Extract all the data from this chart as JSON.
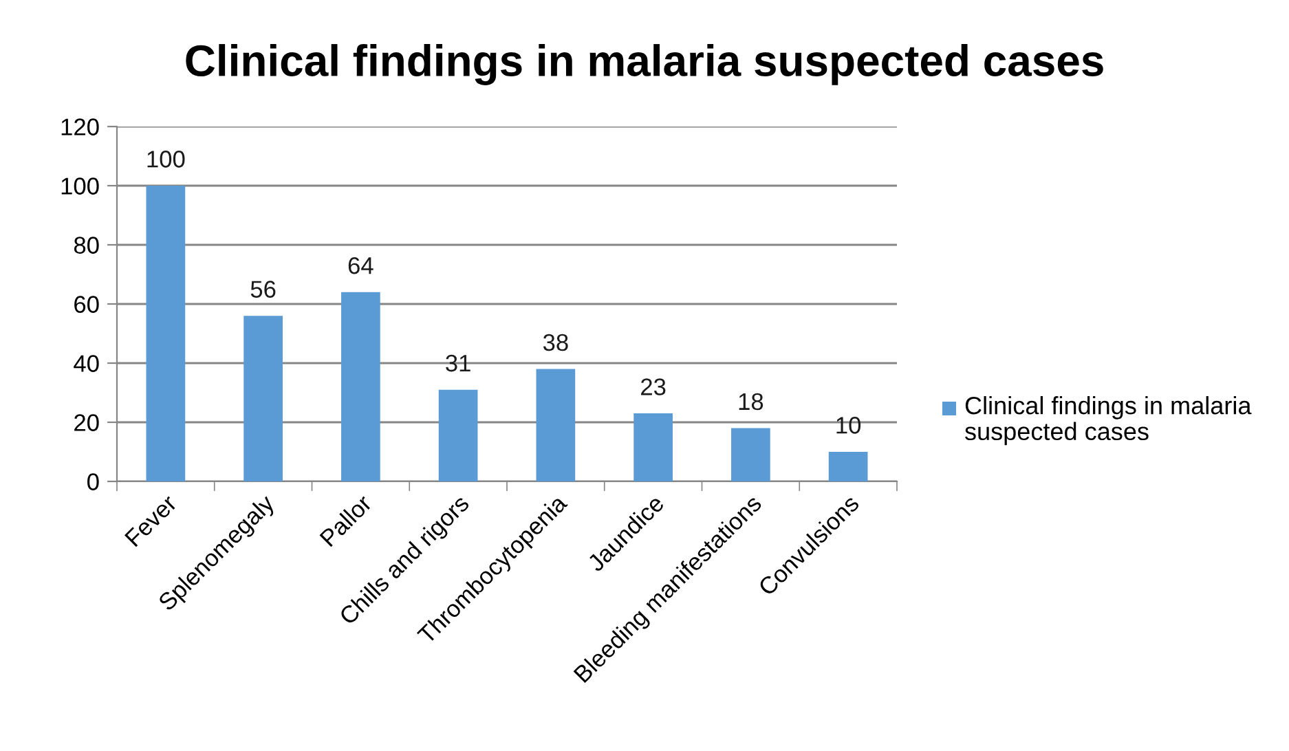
{
  "chart_data": {
    "type": "bar",
    "title": "Clinical findings in malaria suspected cases",
    "categories": [
      "Fever",
      "Splenomegaly",
      "Pallor",
      "Chills and rigors",
      "Thrombocytopenia",
      "Jaundice",
      "Bleeding manifestations",
      "Convulsions"
    ],
    "series": [
      {
        "name": "Clinical findings in malaria suspected cases",
        "color": "#5b9bd5",
        "values": [
          100,
          56,
          64,
          31,
          38,
          23,
          18,
          10
        ]
      }
    ],
    "ylim": [
      0,
      120
    ],
    "yticks": [
      0,
      20,
      40,
      60,
      80,
      100,
      120
    ],
    "grid": "y",
    "legend": "right",
    "data_labels": true
  }
}
